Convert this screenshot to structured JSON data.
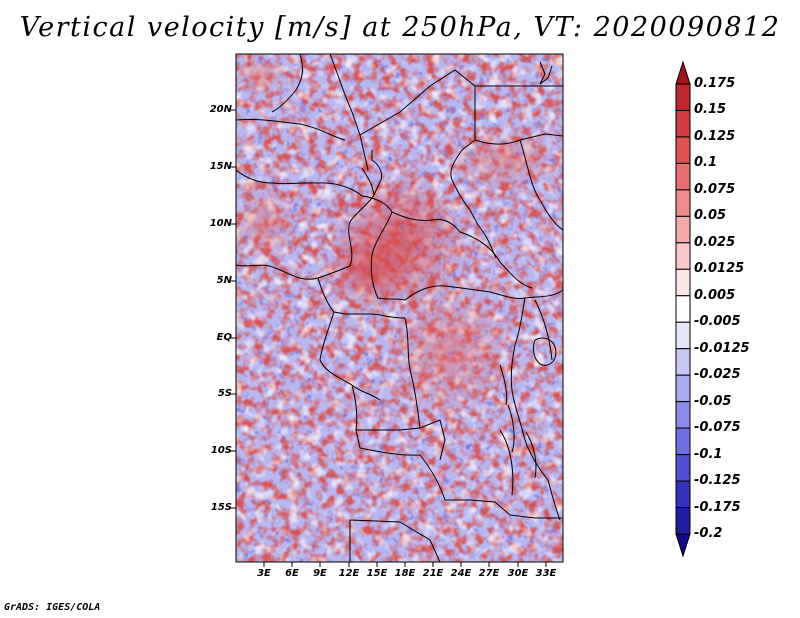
{
  "title": "Vertical velocity [m/s] at 250hPa, VT: 2020090812",
  "credit": "GrADS: IGES/COLA",
  "map": {
    "lat_labels": [
      "20N",
      "15N",
      "10N",
      "5N",
      "EQ",
      "5S",
      "10S",
      "15S"
    ],
    "lon_labels": [
      "3E",
      "6E",
      "9E",
      "12E",
      "15E",
      "18E",
      "21E",
      "24E",
      "27E",
      "30E",
      "33E"
    ]
  },
  "colorbar": {
    "labels": [
      "0.175",
      "0.15",
      "0.125",
      "0.1",
      "0.075",
      "0.05",
      "0.025",
      "0.0125",
      "0.005",
      "-0.005",
      "-0.0125",
      "-0.025",
      "-0.05",
      "-0.075",
      "-0.1",
      "-0.125",
      "-0.175",
      "-0.2"
    ],
    "colors": [
      "#a0141e",
      "#be2828",
      "#d23c3c",
      "#e05050",
      "#e86e6e",
      "#f08c8c",
      "#f5aaaa",
      "#fac8c8",
      "#fde6e6",
      "#ffffff",
      "#e6e6fa",
      "#c8c8f5",
      "#aaaaf0",
      "#8c8ceb",
      "#6e6ee6",
      "#5050d2",
      "#3232be",
      "#1e1ea0",
      "#140a8c"
    ]
  }
}
